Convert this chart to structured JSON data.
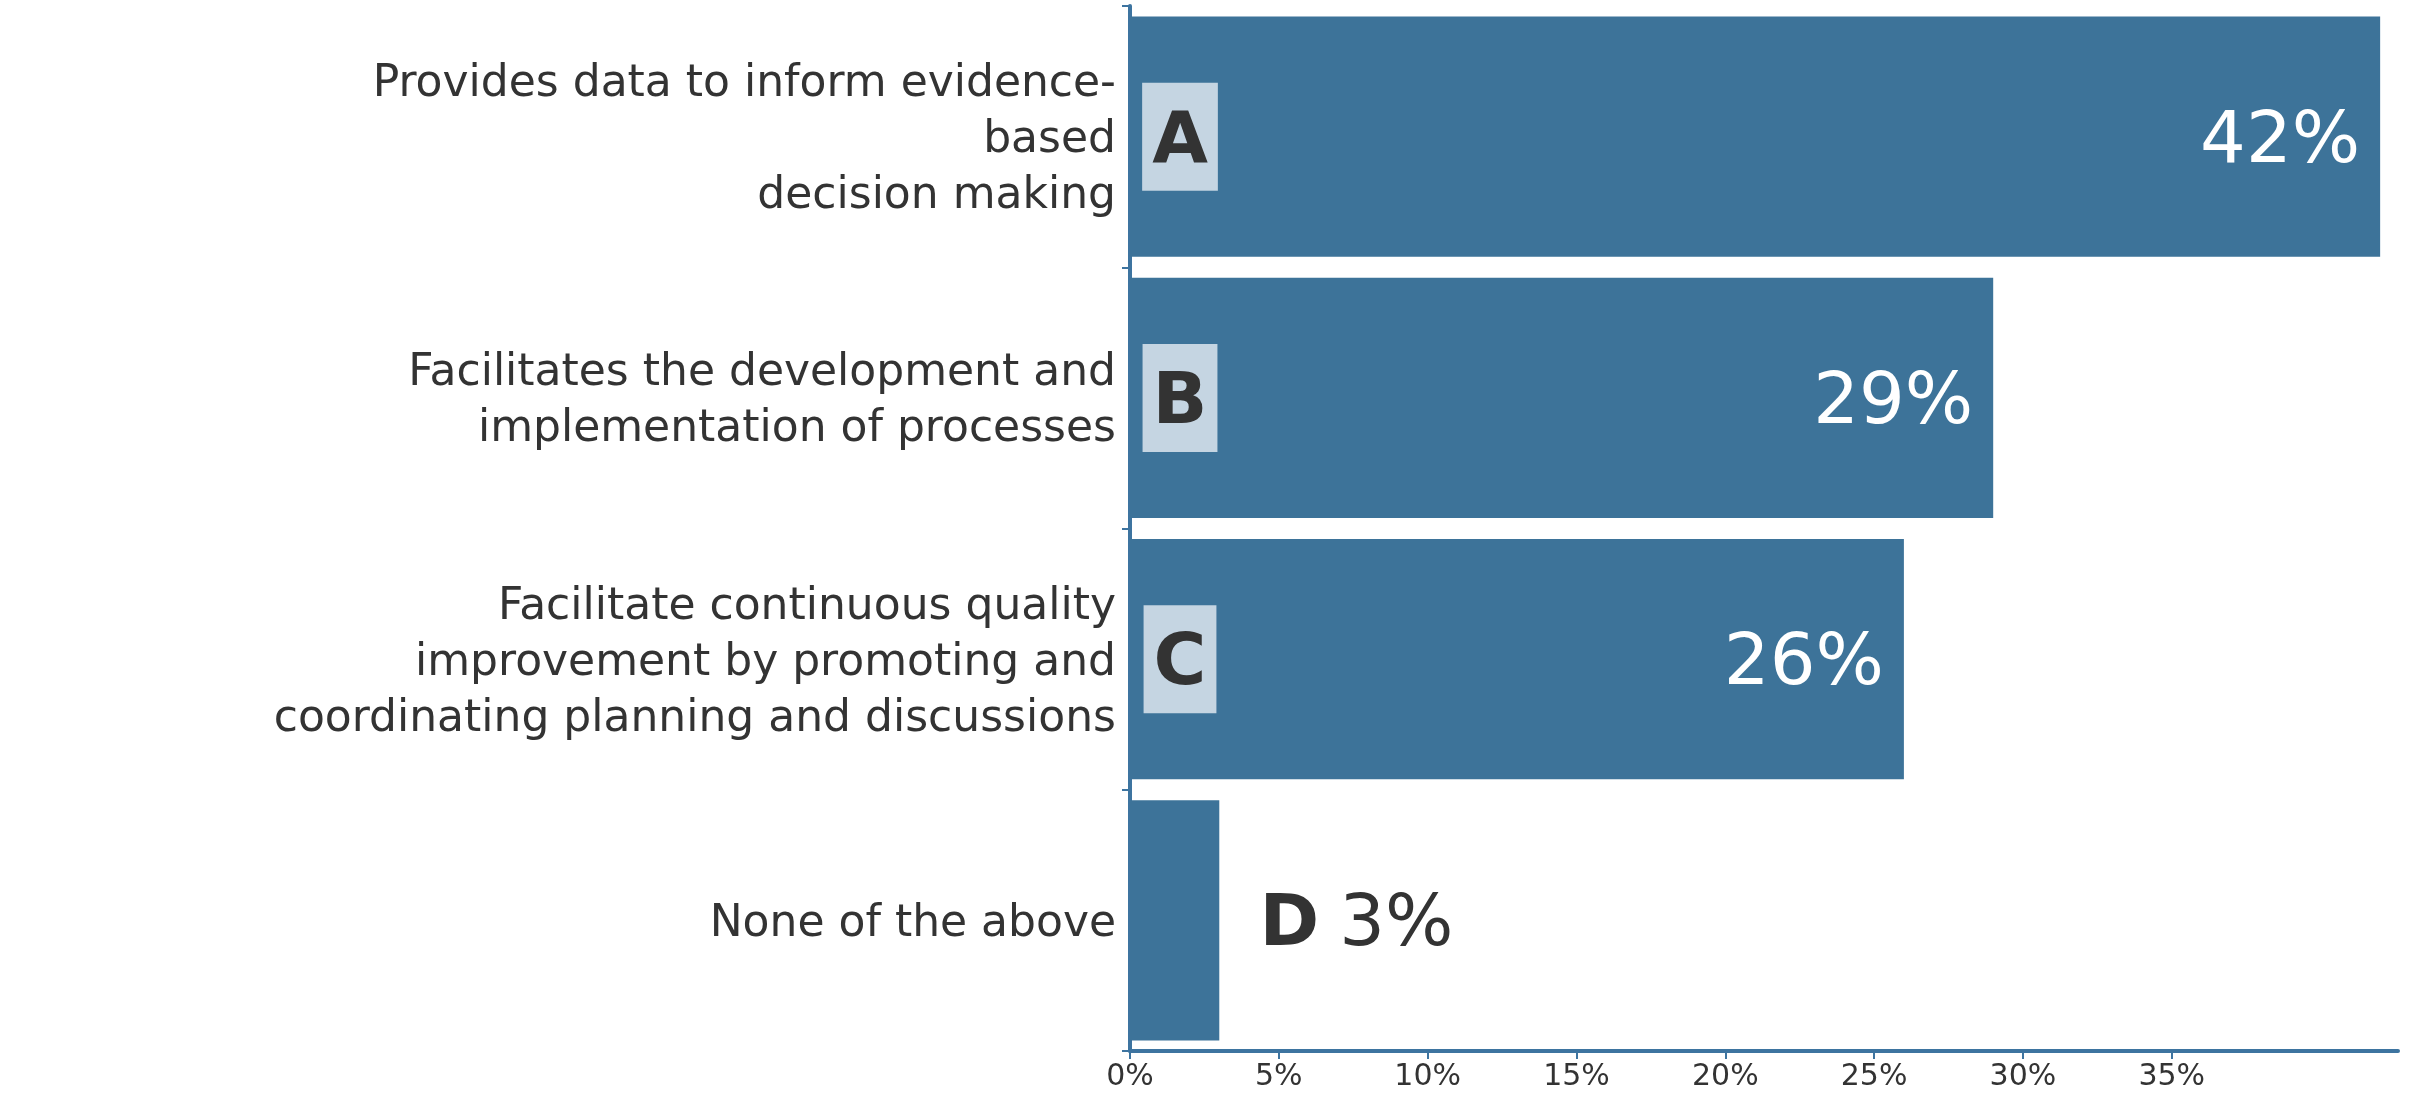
{
  "chart_data": {
    "type": "bar",
    "orientation": "horizontal",
    "categories": [
      "Provides data to inform evidence-based decision making",
      "Facilitates the development and implementation of processes",
      "Facilitate continuous quality improvement by promoting and coordinating planning and discussions",
      "None of the above"
    ],
    "values": [
      42,
      29,
      26,
      3
    ],
    "value_labels": [
      "42%",
      "29%",
      "26%",
      "3%"
    ],
    "color": "#3d7399",
    "xlim": [
      0,
      42.6
    ],
    "xticks": [
      {
        "value": 0,
        "label": "0%"
      },
      {
        "value": 5,
        "label": "5%"
      },
      {
        "value": 10,
        "label": "10%"
      },
      {
        "value": 15,
        "label": "15%"
      },
      {
        "value": 20,
        "label": "20%"
      },
      {
        "value": 25,
        "label": "25%"
      },
      {
        "value": 30,
        "label": "30%"
      },
      {
        "value": 35,
        "label": "35%"
      }
    ],
    "annotations": [
      "A",
      "B",
      "C",
      "D"
    ],
    "grid": false
  }
}
